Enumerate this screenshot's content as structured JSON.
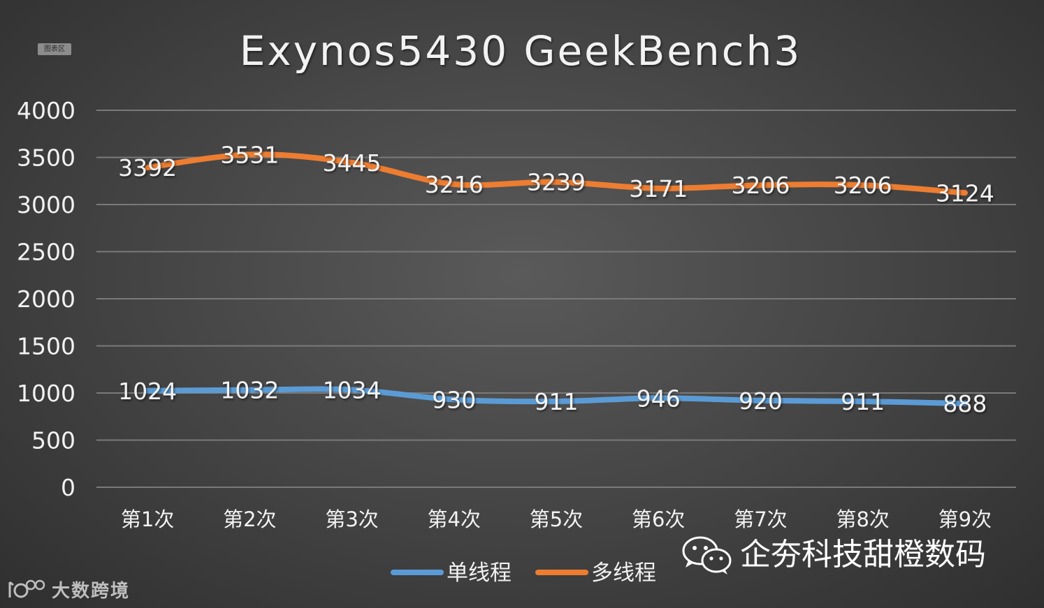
{
  "chart_area_label": "图表区",
  "chart_data": {
    "type": "line",
    "title": "Exynos5430 GeekBench3",
    "categories": [
      "第1次",
      "第2次",
      "第3次",
      "第4次",
      "第5次",
      "第6次",
      "第7次",
      "第8次",
      "第9次"
    ],
    "series": [
      {
        "name": "单线程",
        "color": "#5b9bd5",
        "values": [
          1024,
          1032,
          1034,
          930,
          911,
          946,
          920,
          911,
          888
        ]
      },
      {
        "name": "多线程",
        "color": "#ed7d31",
        "values": [
          3392,
          3531,
          3445,
          3216,
          3239,
          3171,
          3206,
          3206,
          3124
        ]
      }
    ],
    "yticks": [
      "0",
      "500",
      "1000",
      "1500",
      "2000",
      "2500",
      "3000",
      "3500",
      "4000"
    ],
    "ylim": [
      0,
      4000
    ],
    "grid": true,
    "legend": "bottom",
    "data_labels": true
  },
  "watermarks": {
    "wechat_text": "企夯科技甜橙数码",
    "brand_text": "大数跨境"
  }
}
